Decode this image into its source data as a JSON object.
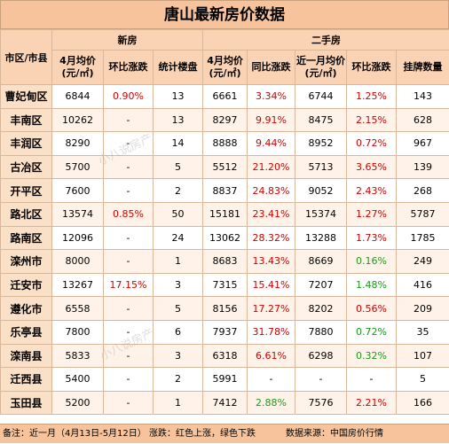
{
  "title": "唐山最新房价数据",
  "headers": {
    "region": "市区/市县",
    "new_group": "新房",
    "second_group": "二手房",
    "new_price": "4月均价(元/㎡)",
    "new_mom": "环比涨跌",
    "new_count": "统计楼盘",
    "sec_price": "4月均价(元/㎡)",
    "sec_yoy": "同比涨跌",
    "sec_month": "近一月均价(元/㎡)",
    "sec_mom": "环比涨跌",
    "sec_listing": "挂牌数量"
  },
  "rows": [
    {
      "region": "曹妃甸区",
      "new_price": "6844",
      "new_mom": "0.90%",
      "new_mom_color": "red",
      "new_count": "13",
      "sec_price": "6661",
      "sec_yoy": "3.34%",
      "sec_yoy_color": "red",
      "sec_month": "6744",
      "sec_mom": "1.25%",
      "sec_mom_color": "red",
      "listing": "143"
    },
    {
      "region": "丰南区",
      "new_price": "10262",
      "new_mom": "-",
      "new_mom_color": "",
      "new_count": "13",
      "sec_price": "8297",
      "sec_yoy": "9.91%",
      "sec_yoy_color": "red",
      "sec_month": "8475",
      "sec_mom": "2.15%",
      "sec_mom_color": "red",
      "listing": "628"
    },
    {
      "region": "丰润区",
      "new_price": "8290",
      "new_mom": "-",
      "new_mom_color": "",
      "new_count": "14",
      "sec_price": "8888",
      "sec_yoy": "9.44%",
      "sec_yoy_color": "red",
      "sec_month": "8952",
      "sec_mom": "0.72%",
      "sec_mom_color": "red",
      "listing": "967"
    },
    {
      "region": "古冶区",
      "new_price": "5700",
      "new_mom": "-",
      "new_mom_color": "",
      "new_count": "5",
      "sec_price": "5512",
      "sec_yoy": "21.20%",
      "sec_yoy_color": "red",
      "sec_month": "5713",
      "sec_mom": "3.65%",
      "sec_mom_color": "red",
      "listing": "139"
    },
    {
      "region": "开平区",
      "new_price": "7600",
      "new_mom": "-",
      "new_mom_color": "",
      "new_count": "2",
      "sec_price": "8837",
      "sec_yoy": "24.83%",
      "sec_yoy_color": "red",
      "sec_month": "9052",
      "sec_mom": "2.43%",
      "sec_mom_color": "red",
      "listing": "268"
    },
    {
      "region": "路北区",
      "new_price": "13574",
      "new_mom": "0.85%",
      "new_mom_color": "red",
      "new_count": "50",
      "sec_price": "15181",
      "sec_yoy": "23.41%",
      "sec_yoy_color": "red",
      "sec_month": "15374",
      "sec_mom": "1.27%",
      "sec_mom_color": "red",
      "listing": "5787"
    },
    {
      "region": "路南区",
      "new_price": "12096",
      "new_mom": "-",
      "new_mom_color": "",
      "new_count": "24",
      "sec_price": "13062",
      "sec_yoy": "28.32%",
      "sec_yoy_color": "red",
      "sec_month": "13288",
      "sec_mom": "1.73%",
      "sec_mom_color": "red",
      "listing": "1785"
    },
    {
      "region": "滦州市",
      "new_price": "8000",
      "new_mom": "-",
      "new_mom_color": "",
      "new_count": "1",
      "sec_price": "8683",
      "sec_yoy": "13.43%",
      "sec_yoy_color": "red",
      "sec_month": "8669",
      "sec_mom": "0.16%",
      "sec_mom_color": "green",
      "listing": "249"
    },
    {
      "region": "迁安市",
      "new_price": "13267",
      "new_mom": "17.15%",
      "new_mom_color": "red",
      "new_count": "3",
      "sec_price": "7315",
      "sec_yoy": "15.41%",
      "sec_yoy_color": "red",
      "sec_month": "7207",
      "sec_mom": "1.48%",
      "sec_mom_color": "green",
      "listing": "416"
    },
    {
      "region": "遵化市",
      "new_price": "6558",
      "new_mom": "-",
      "new_mom_color": "",
      "new_count": "5",
      "sec_price": "8156",
      "sec_yoy": "17.27%",
      "sec_yoy_color": "red",
      "sec_month": "8202",
      "sec_mom": "0.56%",
      "sec_mom_color": "red",
      "listing": "209"
    },
    {
      "region": "乐亭县",
      "new_price": "7800",
      "new_mom": "-",
      "new_mom_color": "",
      "new_count": "6",
      "sec_price": "7937",
      "sec_yoy": "31.78%",
      "sec_yoy_color": "red",
      "sec_month": "7880",
      "sec_mom": "0.72%",
      "sec_mom_color": "green",
      "listing": "35"
    },
    {
      "region": "滦南县",
      "new_price": "5833",
      "new_mom": "-",
      "new_mom_color": "",
      "new_count": "3",
      "sec_price": "6318",
      "sec_yoy": "6.61%",
      "sec_yoy_color": "red",
      "sec_month": "6298",
      "sec_mom": "0.32%",
      "sec_mom_color": "green",
      "listing": "107"
    },
    {
      "region": "迁西县",
      "new_price": "5400",
      "new_mom": "-",
      "new_mom_color": "",
      "new_count": "2",
      "sec_price": "5991",
      "sec_yoy": "-",
      "sec_yoy_color": "",
      "sec_month": "-",
      "sec_mom": "-",
      "sec_mom_color": "",
      "listing": "5"
    },
    {
      "region": "玉田县",
      "new_price": "5200",
      "new_mom": "-",
      "new_mom_color": "",
      "new_count": "1",
      "sec_price": "7412",
      "sec_yoy": "2.88%",
      "sec_yoy_color": "green",
      "sec_month": "7576",
      "sec_mom": "2.21%",
      "sec_mom_color": "red",
      "listing": "166"
    }
  ],
  "footer": {
    "note": "备注：近一月（4月13日-5月12日）  涨跌：红色上涨，绿色下跌",
    "source": "数据来源：中国房价行情"
  },
  "watermark": "小八说房产",
  "colors": {
    "up": "#d40000",
    "down": "#1a9c1a",
    "header": "#f6c39d"
  }
}
